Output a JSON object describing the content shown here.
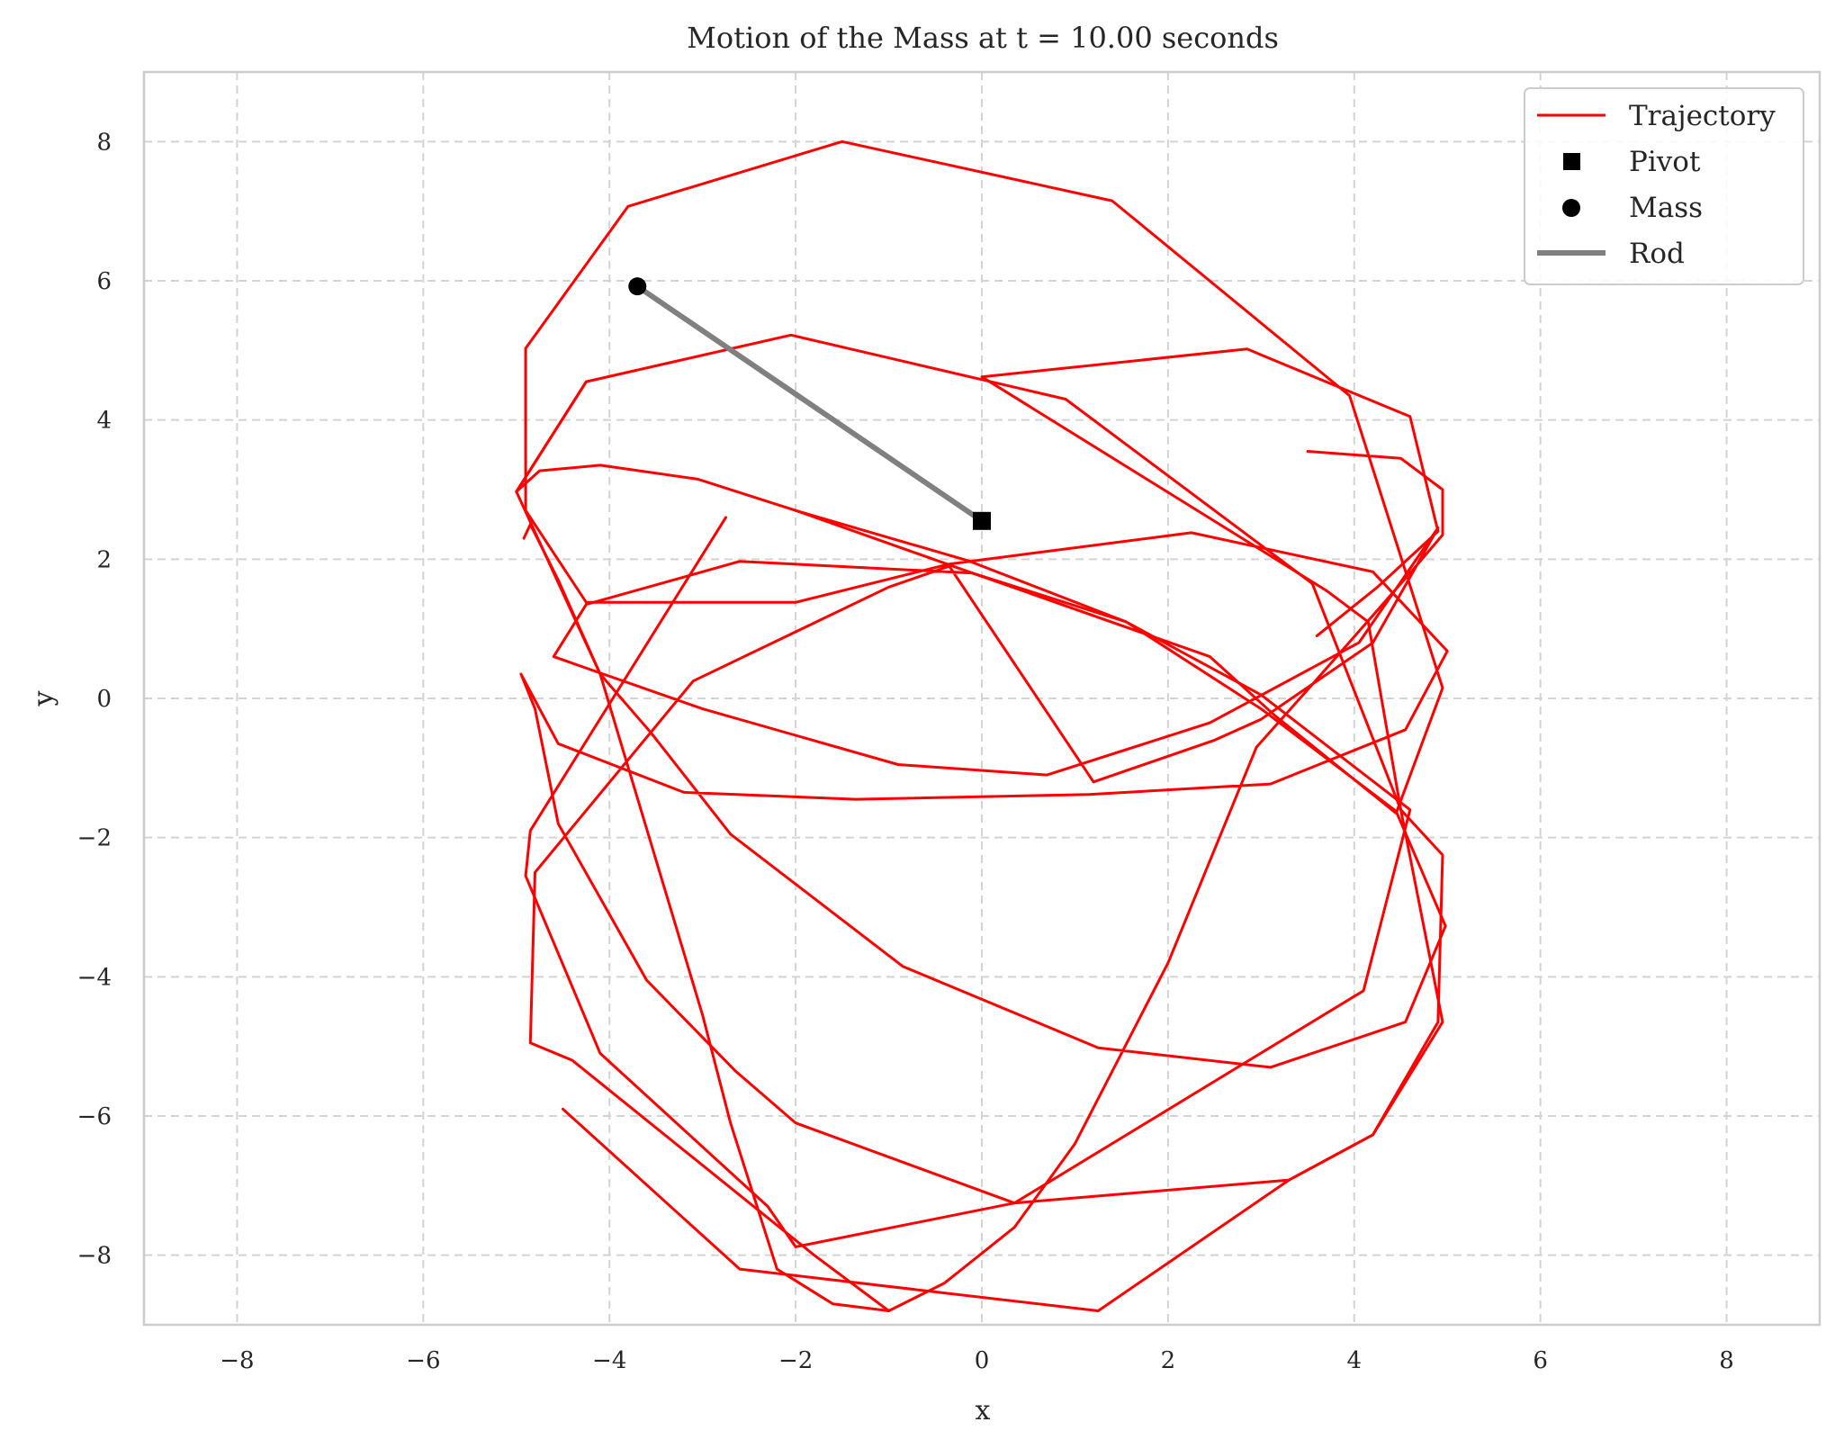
{
  "chart_data": {
    "type": "line",
    "title": "Motion of the Mass at t = 10.00 seconds",
    "xlabel": "x",
    "ylabel": "y",
    "xlim": [
      -9,
      9
    ],
    "ylim": [
      -9,
      9
    ],
    "xticks": [
      -8,
      -6,
      -4,
      -2,
      0,
      2,
      4,
      6,
      8
    ],
    "yticks": [
      -8,
      -6,
      -4,
      -2,
      0,
      2,
      4,
      6,
      8
    ],
    "xtick_labels": [
      "−8",
      "−6",
      "−4",
      "−2",
      "0",
      "2",
      "4",
      "6",
      "8"
    ],
    "ytick_labels": [
      "−8",
      "−6",
      "−4",
      "−2",
      "0",
      "2",
      "4",
      "6",
      "8"
    ],
    "grid": true,
    "legend_position": "top-right",
    "legend": [
      {
        "label": "Trajectory",
        "kind": "line",
        "color": "#ff0000"
      },
      {
        "label": "Pivot",
        "kind": "square",
        "color": "#000000"
      },
      {
        "label": "Mass",
        "kind": "circle",
        "color": "#000000"
      },
      {
        "label": "Rod",
        "kind": "thick-line",
        "color": "#808080"
      }
    ],
    "trajectory": {
      "name": "Trajectory",
      "color": "#ff0000",
      "points": [
        [
          -4.92,
          2.3
        ],
        [
          -4.85,
          2.5
        ],
        [
          -4.55,
          1.7
        ],
        [
          -4.1,
          0.35
        ],
        [
          -3.55,
          -0.5
        ],
        [
          -2.7,
          -1.95
        ],
        [
          -0.85,
          -3.85
        ],
        [
          1.25,
          -5.02
        ],
        [
          3.1,
          -5.3
        ],
        [
          4.55,
          -4.65
        ],
        [
          4.98,
          -3.27
        ],
        [
          4.45,
          -1.62
        ],
        [
          3.0,
          -0.15
        ],
        [
          1.55,
          1.1
        ],
        [
          -0.15,
          1.98
        ],
        [
          -2.0,
          2.7
        ],
        [
          -3.05,
          3.15
        ],
        [
          -4.1,
          3.35
        ],
        [
          -4.75,
          3.27
        ],
        [
          -5.0,
          2.97
        ],
        [
          -4.25,
          4.55
        ],
        [
          -2.05,
          5.22
        ],
        [
          0.9,
          4.3
        ],
        [
          3.55,
          1.65
        ],
        [
          4.5,
          -1.6
        ],
        [
          4.95,
          -2.25
        ],
        [
          4.9,
          -4.65
        ],
        [
          4.2,
          -6.27
        ],
        [
          3.3,
          -6.92
        ],
        [
          0.35,
          -7.25
        ],
        [
          -2.0,
          -6.1
        ],
        [
          -2.65,
          -5.35
        ],
        [
          -3.6,
          -4.05
        ],
        [
          -4.55,
          -1.8
        ],
        [
          -4.8,
          -0.15
        ],
        [
          -4.95,
          0.35
        ],
        [
          -4.55,
          -0.65
        ],
        [
          -3.2,
          -1.35
        ],
        [
          -1.35,
          -1.45
        ],
        [
          1.15,
          -1.38
        ],
        [
          3.1,
          -1.23
        ],
        [
          4.55,
          -0.45
        ],
        [
          5.0,
          0.68
        ],
        [
          4.2,
          1.82
        ],
        [
          2.25,
          2.38
        ],
        [
          -0.35,
          1.93
        ],
        [
          -2.0,
          1.38
        ],
        [
          -4.25,
          1.38
        ],
        [
          -4.9,
          2.7
        ],
        [
          -4.9,
          5.03
        ],
        [
          -3.8,
          7.07
        ],
        [
          -1.5,
          8.0
        ],
        [
          1.4,
          7.15
        ],
        [
          3.95,
          4.35
        ],
        [
          4.95,
          0.15
        ],
        [
          4.45,
          -1.65
        ],
        [
          3.15,
          -0.25
        ],
        [
          2.45,
          0.6
        ],
        [
          -0.1,
          1.8
        ],
        [
          -2.6,
          1.97
        ],
        [
          -4.25,
          1.35
        ],
        [
          -4.6,
          0.6
        ],
        [
          -3.0,
          -0.15
        ],
        [
          -0.9,
          -0.95
        ],
        [
          0.7,
          -1.1
        ],
        [
          2.45,
          -0.35
        ],
        [
          4.05,
          0.8
        ],
        [
          4.9,
          2.45
        ],
        [
          4.2,
          0.8
        ],
        [
          3.0,
          -0.3
        ],
        [
          2.5,
          -0.6
        ],
        [
          1.2,
          -1.2
        ],
        [
          -0.35,
          1.9
        ],
        [
          -1.0,
          1.6
        ],
        [
          -3.1,
          0.25
        ],
        [
          -4.8,
          -2.5
        ],
        [
          -4.85,
          -4.95
        ],
        [
          -4.4,
          -5.2
        ],
        [
          -1.8,
          -8.0
        ],
        [
          -1.0,
          -8.8
        ],
        [
          -0.4,
          -8.4
        ],
        [
          0.35,
          -7.6
        ],
        [
          1.0,
          -6.4
        ],
        [
          2.0,
          -3.8
        ],
        [
          2.95,
          -0.7
        ],
        [
          3.55,
          0.2
        ],
        [
          4.6,
          1.8
        ],
        [
          4.95,
          2.35
        ],
        [
          4.95,
          3.0
        ],
        [
          4.5,
          3.45
        ],
        [
          3.5,
          3.55
        ]
      ]
    },
    "extra_path": {
      "points": [
        [
          -4.5,
          -5.9
        ],
        [
          -2.6,
          -8.2
        ],
        [
          1.25,
          -8.8
        ],
        [
          3.3,
          -6.92
        ],
        [
          4.2,
          -6.27
        ],
        [
          4.95,
          -4.65
        ],
        [
          4.5,
          -1.6
        ],
        [
          4.15,
          1.1
        ],
        [
          3.7,
          1.55
        ],
        [
          0.0,
          4.62
        ],
        [
          2.85,
          5.02
        ],
        [
          4.6,
          4.05
        ],
        [
          4.9,
          2.4
        ],
        [
          4.25,
          1.6
        ],
        [
          3.6,
          0.9
        ]
      ]
    },
    "extra_path2": {
      "points": [
        [
          -2.75,
          2.6
        ],
        [
          -4.85,
          -1.9
        ],
        [
          -4.9,
          -2.55
        ],
        [
          -4.1,
          -5.1
        ],
        [
          -2.3,
          -7.3
        ],
        [
          -2.0,
          -7.88
        ],
        [
          0.35,
          -7.25
        ],
        [
          4.1,
          -4.2
        ],
        [
          4.6,
          -1.6
        ],
        [
          3.0,
          0.05
        ],
        [
          1.55,
          1.1
        ],
        [
          -0.1,
          1.8
        ],
        [
          -2.0,
          2.7
        ]
      ]
    },
    "extra_path3": {
      "points": [
        [
          -4.25,
          4.55
        ],
        [
          -5.0,
          2.97
        ],
        [
          -4.1,
          0.35
        ],
        [
          -3.0,
          -4.55
        ],
        [
          -2.7,
          -6.1
        ],
        [
          -2.2,
          -8.2
        ],
        [
          -1.6,
          -8.7
        ],
        [
          -1.0,
          -8.8
        ]
      ]
    },
    "pivot": {
      "name": "Pivot",
      "x": 0.0,
      "y": 2.55,
      "color": "#000000"
    },
    "mass": {
      "name": "Mass",
      "x": -3.7,
      "y": 5.92,
      "color": "#000000"
    },
    "rod": {
      "name": "Rod",
      "from": [
        0.0,
        2.55
      ],
      "to": [
        -3.7,
        5.92
      ],
      "color": "#808080"
    }
  }
}
